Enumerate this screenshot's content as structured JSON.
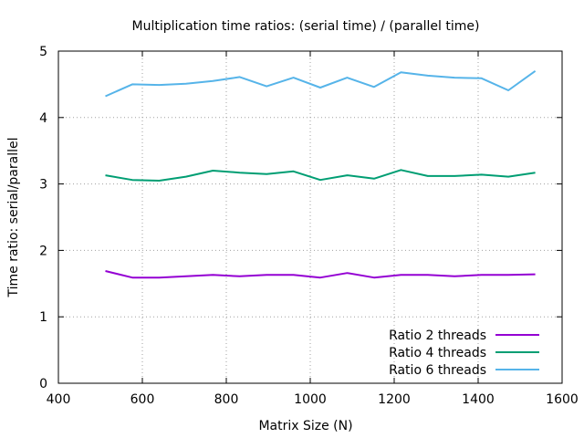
{
  "chart_data": {
    "type": "line",
    "title": "Multiplication time ratios: (serial time) / (parallel time)",
    "xlabel": "Matrix Size (N)",
    "ylabel": "Time ratio: serial/parallel",
    "xlim": [
      400,
      1600
    ],
    "ylim": [
      0,
      5
    ],
    "xticks": [
      400,
      600,
      800,
      1000,
      1200,
      1400,
      1600
    ],
    "yticks": [
      0,
      1,
      2,
      3,
      4,
      5
    ],
    "grid": true,
    "legend_position": "bottom-right",
    "x": [
      512,
      576,
      640,
      704,
      768,
      832,
      896,
      960,
      1024,
      1088,
      1152,
      1216,
      1280,
      1344,
      1408,
      1472,
      1536
    ],
    "series": [
      {
        "name": "Ratio 2 threads",
        "color": "#9400d3",
        "values": [
          1.69,
          1.59,
          1.59,
          1.61,
          1.63,
          1.61,
          1.63,
          1.63,
          1.59,
          1.66,
          1.59,
          1.63,
          1.63,
          1.61,
          1.63,
          1.63,
          1.64
        ]
      },
      {
        "name": "Ratio 4 threads",
        "color": "#009e73",
        "values": [
          3.13,
          3.06,
          3.05,
          3.11,
          3.2,
          3.17,
          3.15,
          3.19,
          3.06,
          3.13,
          3.08,
          3.21,
          3.12,
          3.12,
          3.14,
          3.11,
          3.17
        ]
      },
      {
        "name": "Ratio 6 threads",
        "color": "#56b4e9",
        "values": [
          4.32,
          4.5,
          4.49,
          4.51,
          4.55,
          4.61,
          4.47,
          4.6,
          4.45,
          4.6,
          4.46,
          4.68,
          4.63,
          4.6,
          4.59,
          4.41,
          4.7
        ]
      }
    ]
  }
}
